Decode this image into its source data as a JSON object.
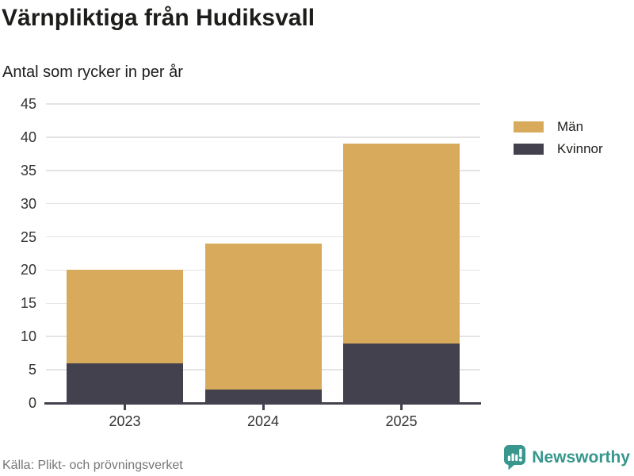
{
  "chart_data": {
    "type": "bar",
    "stacked": true,
    "title": "Värnpliktiga från Hudiksvall",
    "subtitle": "Antal som rycker in per år",
    "categories": [
      "2023",
      "2024",
      "2025"
    ],
    "series": [
      {
        "name": "Män",
        "color": "#d8ab5c",
        "values": [
          14,
          22,
          30
        ]
      },
      {
        "name": "Kvinnor",
        "color": "#44414f",
        "values": [
          6,
          2,
          9
        ]
      }
    ],
    "stack_totals": [
      20,
      24,
      39
    ],
    "ylim": [
      0,
      45
    ],
    "yticks": [
      0,
      5,
      10,
      15,
      20,
      25,
      30,
      35,
      40,
      45
    ],
    "grid": "horizontal",
    "legend_position": "top-right",
    "colors": {
      "grid": "#e4e4e4",
      "axis": "#44414f",
      "tick_label": "#333333"
    }
  },
  "footer": {
    "source": "Källa: Plikt- och prövningsverket"
  },
  "branding": {
    "name": "Newsworthy",
    "color": "#38978d"
  }
}
